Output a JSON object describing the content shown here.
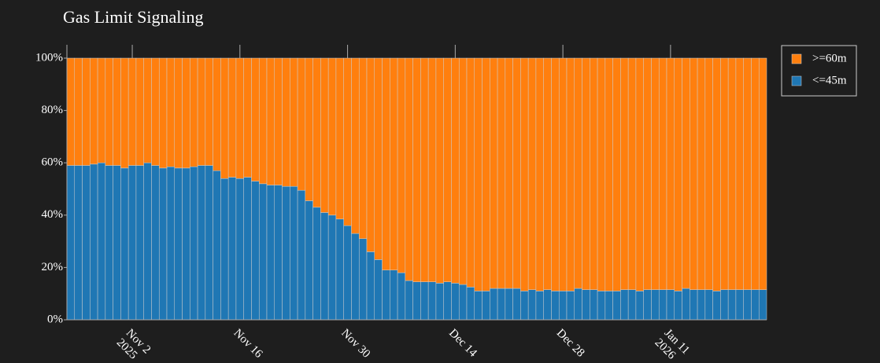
{
  "chart_data": {
    "type": "stacked-bar",
    "title": "Gas Limit Signaling",
    "x": [
      "2025-10-25",
      "2025-10-26",
      "2025-10-27",
      "2025-10-28",
      "2025-10-29",
      "2025-10-30",
      "2025-10-31",
      "2025-11-01",
      "2025-11-02",
      "2025-11-03",
      "2025-11-04",
      "2025-11-05",
      "2025-11-06",
      "2025-11-07",
      "2025-11-08",
      "2025-11-09",
      "2025-11-10",
      "2025-11-11",
      "2025-11-12",
      "2025-11-13",
      "2025-11-14",
      "2025-11-15",
      "2025-11-16",
      "2025-11-17",
      "2025-11-18",
      "2025-11-19",
      "2025-11-20",
      "2025-11-21",
      "2025-11-22",
      "2025-11-23",
      "2025-11-24",
      "2025-11-25",
      "2025-11-26",
      "2025-11-27",
      "2025-11-28",
      "2025-11-29",
      "2025-11-30",
      "2025-12-01",
      "2025-12-02",
      "2025-12-03",
      "2025-12-04",
      "2025-12-05",
      "2025-12-06",
      "2025-12-07",
      "2025-12-08",
      "2025-12-09",
      "2025-12-10",
      "2025-12-11",
      "2025-12-12",
      "2025-12-13",
      "2025-12-14",
      "2025-12-15",
      "2025-12-16",
      "2025-12-17",
      "2025-12-18",
      "2025-12-19",
      "2025-12-20",
      "2025-12-21",
      "2025-12-22",
      "2025-12-23",
      "2025-12-24",
      "2025-12-25",
      "2025-12-26",
      "2025-12-27",
      "2025-12-28",
      "2025-12-29",
      "2025-12-30",
      "2025-12-31",
      "2026-01-01",
      "2026-01-02",
      "2026-01-03",
      "2026-01-04",
      "2026-01-05",
      "2026-01-06",
      "2026-01-07",
      "2026-01-08",
      "2026-01-09",
      "2026-01-10",
      "2026-01-11",
      "2026-01-12",
      "2026-01-13",
      "2026-01-14",
      "2026-01-15",
      "2026-01-16",
      "2026-01-17",
      "2026-01-18",
      "2026-01-19",
      "2026-01-20",
      "2026-01-21",
      "2026-01-22",
      "2026-01-23"
    ],
    "series": [
      {
        "name": "<=45m",
        "color": "#1f77b4",
        "values": [
          59,
          59,
          59,
          59.5,
          60,
          59,
          59,
          58,
          59,
          59,
          60,
          59,
          58,
          58.5,
          58,
          58,
          58.5,
          59,
          59,
          57,
          54,
          54.5,
          54,
          54.5,
          53,
          52,
          51.5,
          51.5,
          51,
          51,
          49.5,
          45.5,
          43,
          41,
          40,
          38.5,
          36,
          33,
          31,
          26,
          23,
          19,
          19,
          18,
          15,
          14.5,
          14.5,
          14.5,
          14,
          14.5,
          14,
          13.5,
          12.5,
          11,
          11,
          12,
          12,
          12,
          12,
          11,
          11.5,
          11,
          11.5,
          11,
          11,
          11,
          12,
          11.5,
          11.5,
          11,
          11,
          11,
          11.5,
          11.5,
          11,
          11.5,
          11.5,
          11.5,
          11.5,
          11,
          12,
          11.5,
          11.5,
          11.5,
          11,
          11.5,
          11.5,
          11.5,
          11.5,
          11.5,
          11.5
        ]
      },
      {
        "name": ">=60m",
        "color": "#ff7f0e",
        "values": [
          41,
          41,
          41,
          40.5,
          40,
          41,
          41,
          42,
          41,
          41,
          40,
          41,
          42,
          41.5,
          42,
          42,
          41.5,
          41,
          41,
          43,
          46,
          45.5,
          46,
          45.5,
          47,
          48,
          48.5,
          48.5,
          49,
          49,
          50.5,
          54.5,
          57,
          59,
          60,
          61.5,
          64,
          67,
          69,
          74,
          77,
          81,
          81,
          82,
          85,
          85.5,
          85.5,
          85.5,
          86,
          85.5,
          86,
          86.5,
          87.5,
          89,
          89,
          88,
          88,
          88,
          88,
          89,
          88.5,
          89,
          88.5,
          89,
          89,
          89,
          88,
          88.5,
          88.5,
          89,
          89,
          89,
          88.5,
          88.5,
          89,
          88.5,
          88.5,
          88.5,
          88.5,
          89,
          88,
          88.5,
          88.5,
          88.5,
          89,
          88.5,
          88.5,
          88.5,
          88.5,
          88.5,
          88.5
        ]
      }
    ],
    "xlim": [
      "2025-10-24T12:00:00Z",
      "2026-01-23T12:00:00Z"
    ],
    "xticks": [
      {
        "value": "2025-11-02",
        "label": [
          "Nov 2",
          "2025"
        ]
      },
      {
        "value": "2025-11-16",
        "label": [
          "Nov 16"
        ]
      },
      {
        "value": "2025-11-30",
        "label": [
          "Nov 30"
        ]
      },
      {
        "value": "2025-12-14",
        "label": [
          "Dec 14"
        ]
      },
      {
        "value": "2025-12-28",
        "label": [
          "Dec 28"
        ]
      },
      {
        "value": "2026-01-11",
        "label": [
          "Jan 11",
          "2026"
        ]
      }
    ],
    "ylim": [
      0,
      100
    ],
    "yticks": [
      {
        "value": 0,
        "label": "0%"
      },
      {
        "value": 20,
        "label": "20%"
      },
      {
        "value": 40,
        "label": "40%"
      },
      {
        "value": 60,
        "label": "60%"
      },
      {
        "value": 80,
        "label": "80%"
      },
      {
        "value": 100,
        "label": "100%"
      }
    ],
    "legend": "top-right"
  }
}
